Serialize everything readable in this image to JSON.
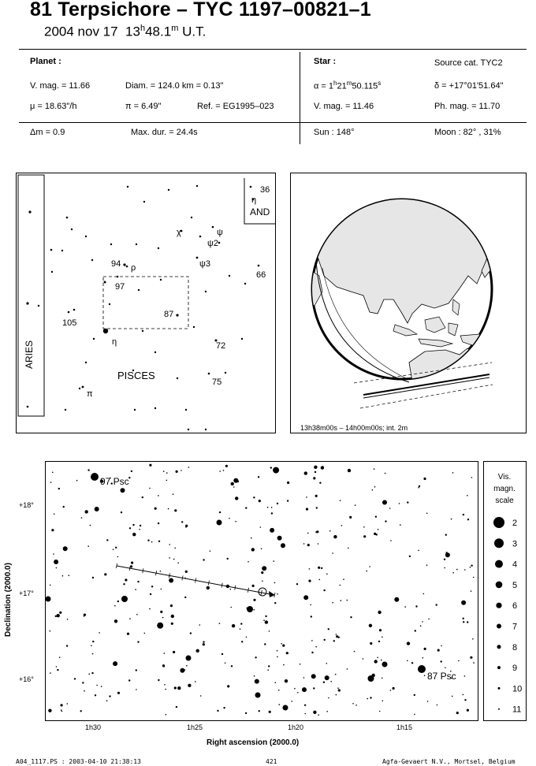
{
  "header": {
    "title": "81 Terpsichore  –  TYC 1197–00821–1",
    "date": "2004 nov 17",
    "time_h": "13",
    "time_h_unit": "h",
    "time_m": "48.1",
    "time_m_unit": "m",
    "time_suffix": "U.T."
  },
  "planet": {
    "label": "Planet :",
    "vmag": "V. mag. = 11.66",
    "diam": "Diam. = 124.0 km = 0.13\"",
    "mu": "μ = 18.63\"/h",
    "pi": "π =  6.49\"",
    "ref": "Ref. = EG1995–023"
  },
  "star": {
    "label": "Star :",
    "source": "Source cat.  TYC2",
    "alpha_prefix": "α = 1",
    "alpha_h": "h",
    "alpha_mid": "21",
    "alpha_m": "m",
    "alpha_s": "50.115",
    "alpha_s_unit": "s",
    "delta": "δ = +17°01'51.64\"",
    "vmag": "V. mag. = 11.46",
    "phmag": "Ph. mag. = 11.70"
  },
  "summary": {
    "dm": "Δm = 0.9",
    "maxdur": "Max. dur. = 24.4s",
    "sun": "Sun : 148°",
    "moon": "Moon :  82° , 31%"
  },
  "finder": {
    "labels": {
      "aries": "ARIES",
      "pisces": "PISCES",
      "and": "AND",
      "n36": "36",
      "eta_and": "η",
      "chi": "χ",
      "psi": "ψ",
      "psi2": "ψ2",
      "psi3": "ψ3",
      "n94": "94",
      "rho": "ρ",
      "n97": "97",
      "n66": "66",
      "n87": "87",
      "n105": "105",
      "eta": "η",
      "n72": "72",
      "n75": "75",
      "pi_star": "π"
    }
  },
  "globe": {
    "caption": "13h38m00s – 14h00m00s; int.  2m"
  },
  "chart": {
    "ylabel": "Declination (2000.0)",
    "xlabel": "Right ascension (2000.0)",
    "xticks": [
      "1h30",
      "1h25",
      "1h20",
      "1h15"
    ],
    "yticks": [
      "+18°",
      "+17°",
      "+16°"
    ],
    "star_labels": {
      "psc97": "97 Psc",
      "psc87": "87 Psc"
    }
  },
  "scale": {
    "title_lines": [
      "Vis.",
      "magn.",
      "scale"
    ],
    "mags": [
      "2",
      "3",
      "4",
      "5",
      "6",
      "7",
      "8",
      "9",
      "10",
      "11"
    ]
  },
  "footer": {
    "left": "A04_1117.PS : 2003-04-10 21:38:13",
    "page": "421",
    "right": "Agfa-Gevaert N.V., Mortsel, Belgium"
  }
}
